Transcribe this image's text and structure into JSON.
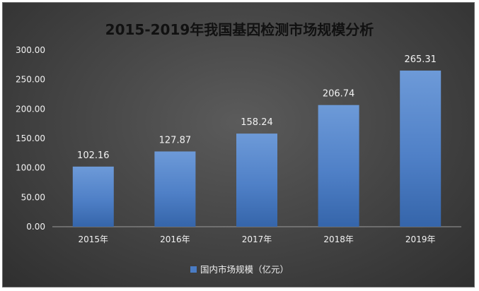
{
  "chart_data": {
    "type": "bar",
    "title": "2015-2019年我国基因检测市场规模分析",
    "categories": [
      "2015年",
      "2016年",
      "2017年",
      "2018年",
      "2019年"
    ],
    "series": [
      {
        "name": "国内市场规模（亿元）",
        "values": [
          102.16,
          127.87,
          158.24,
          206.74,
          265.31
        ],
        "data_labels": [
          "102.16",
          "127.87",
          "158.24",
          "206.74",
          "265.31"
        ],
        "color": "#4a7cc4"
      }
    ],
    "ylim": [
      0,
      300
    ],
    "yticks": [
      "0.00",
      "50.00",
      "100.00",
      "150.00",
      "200.00",
      "250.00",
      "300.00"
    ],
    "grid": false,
    "legend": "bottom"
  }
}
